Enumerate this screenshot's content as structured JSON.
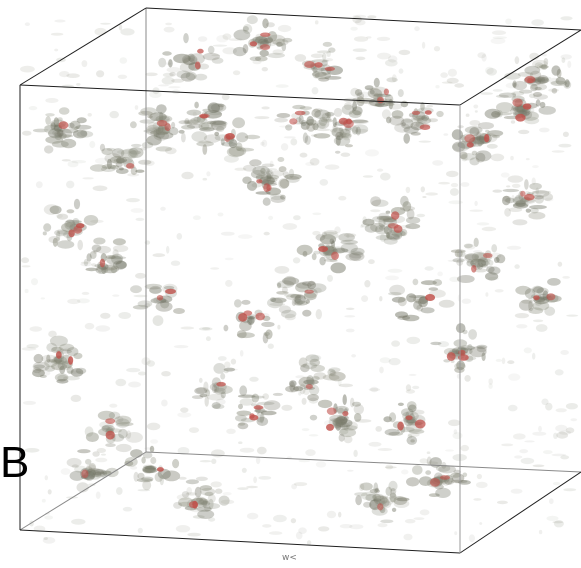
{
  "figure": {
    "panel_letter": "B",
    "bottom_label": "w<",
    "colors": {
      "background": "#ffffff",
      "box_edges": "#222222",
      "box_edges_back": "#888888",
      "isosurface_low": "#6e7060",
      "isosurface_mid": "#8a8c7c",
      "isosurface_high": "#c0504a"
    }
  }
}
